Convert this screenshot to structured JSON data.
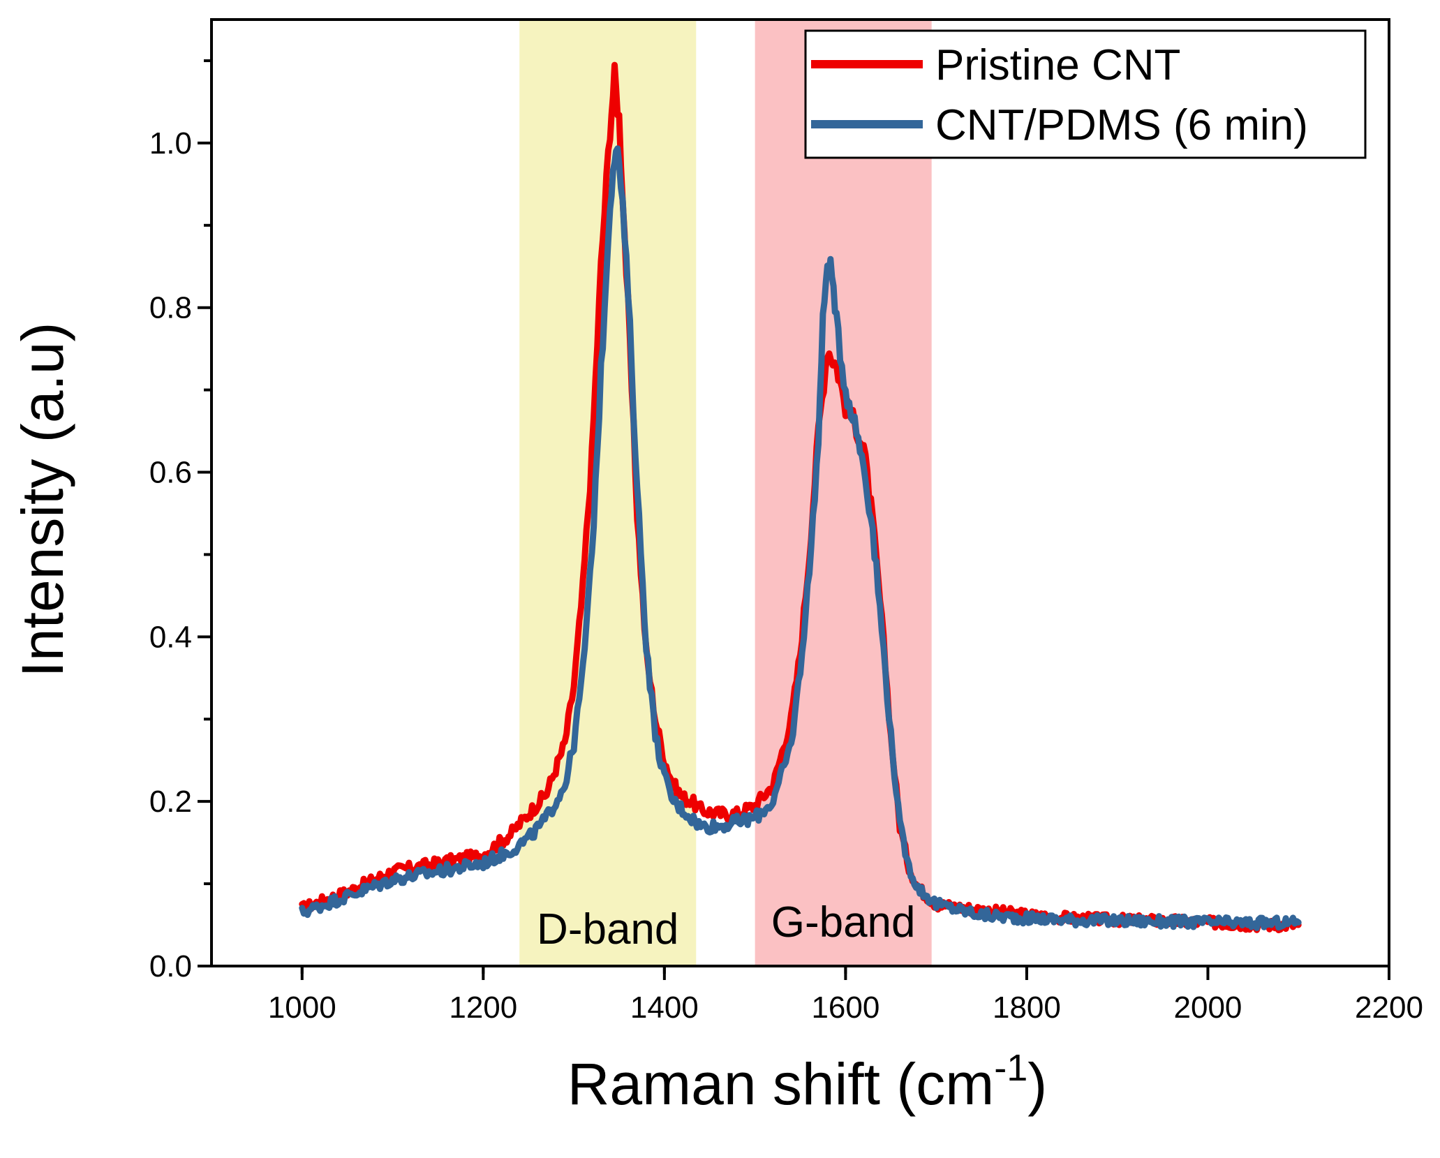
{
  "chart_data": {
    "type": "line",
    "xlabel": "Raman shift (cm",
    "xlabel_sup": "-1",
    "xlabel_end": ")",
    "ylabel": "Intensity (a.u)",
    "xlim": [
      900,
      2200
    ],
    "ylim": [
      0.0,
      1.15
    ],
    "x_ticks": [
      1000,
      1200,
      1400,
      1600,
      1800,
      2000,
      2200
    ],
    "y_ticks": [
      "0.0",
      "0.2",
      "0.4",
      "0.6",
      "0.8",
      "1.0"
    ],
    "y_tick_values": [
      0.0,
      0.2,
      0.4,
      0.6,
      0.8,
      1.0
    ],
    "legend_position": "top-right",
    "bands": [
      {
        "label": "D-band",
        "x_range": [
          1240,
          1435
        ],
        "color": "#f6f3bf"
      },
      {
        "label": "G-band",
        "x_range": [
          1500,
          1695
        ],
        "color": "#fbc1c3"
      }
    ],
    "series": [
      {
        "name": "Pristine CNT",
        "color": "#ee0000",
        "x": [
          1000,
          1050,
          1100,
          1150,
          1200,
          1230,
          1250,
          1270,
          1290,
          1300,
          1310,
          1320,
          1330,
          1340,
          1345,
          1350,
          1360,
          1370,
          1380,
          1390,
          1400,
          1410,
          1420,
          1430,
          1440,
          1460,
          1480,
          1500,
          1520,
          1540,
          1550,
          1560,
          1570,
          1580,
          1590,
          1600,
          1610,
          1620,
          1630,
          1640,
          1650,
          1660,
          1670,
          1680,
          1700,
          1750,
          1800,
          1850,
          1900,
          1950,
          2000,
          2050,
          2100
        ],
        "y": [
          0.07,
          0.09,
          0.115,
          0.125,
          0.135,
          0.16,
          0.185,
          0.21,
          0.27,
          0.34,
          0.46,
          0.62,
          0.85,
          1.02,
          1.08,
          1.03,
          0.8,
          0.55,
          0.38,
          0.3,
          0.25,
          0.22,
          0.205,
          0.2,
          0.19,
          0.185,
          0.185,
          0.195,
          0.22,
          0.3,
          0.38,
          0.5,
          0.65,
          0.75,
          0.73,
          0.68,
          0.66,
          0.63,
          0.54,
          0.42,
          0.28,
          0.17,
          0.12,
          0.095,
          0.075,
          0.068,
          0.062,
          0.058,
          0.056,
          0.055,
          0.053,
          0.05,
          0.05
        ]
      },
      {
        "name": "CNT/PDMS (6 min)",
        "color": "#336699",
        "x": [
          1000,
          1050,
          1100,
          1150,
          1200,
          1230,
          1250,
          1270,
          1290,
          1300,
          1310,
          1320,
          1330,
          1340,
          1345,
          1350,
          1360,
          1370,
          1380,
          1390,
          1400,
          1410,
          1420,
          1430,
          1440,
          1460,
          1480,
          1500,
          1520,
          1540,
          1550,
          1560,
          1570,
          1575,
          1580,
          1585,
          1590,
          1600,
          1610,
          1620,
          1630,
          1640,
          1650,
          1660,
          1670,
          1680,
          1700,
          1750,
          1800,
          1850,
          1900,
          1950,
          2000,
          2050,
          2100
        ],
        "y": [
          0.065,
          0.085,
          0.105,
          0.115,
          0.125,
          0.14,
          0.155,
          0.18,
          0.22,
          0.27,
          0.36,
          0.5,
          0.72,
          0.93,
          0.99,
          0.98,
          0.82,
          0.58,
          0.39,
          0.28,
          0.23,
          0.2,
          0.19,
          0.18,
          0.17,
          0.17,
          0.175,
          0.18,
          0.2,
          0.27,
          0.36,
          0.48,
          0.64,
          0.78,
          0.86,
          0.84,
          0.78,
          0.7,
          0.66,
          0.61,
          0.53,
          0.41,
          0.28,
          0.17,
          0.12,
          0.095,
          0.075,
          0.062,
          0.058,
          0.056,
          0.055,
          0.054,
          0.053,
          0.052,
          0.053
        ]
      }
    ]
  }
}
